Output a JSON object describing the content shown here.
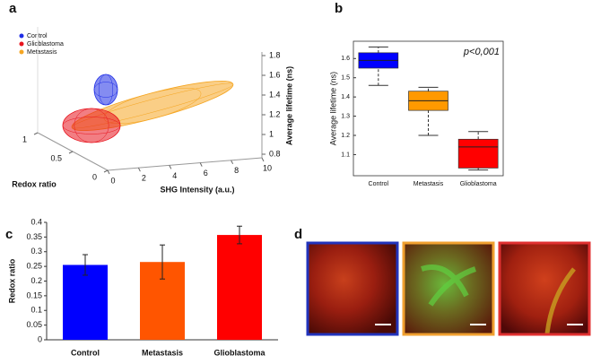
{
  "chart_data": [
    {
      "type": "scatter3d",
      "panel_label": "a",
      "series": [
        {
          "name": "Control",
          "color": "#1f2ee6"
        },
        {
          "name": "Glioblastoma",
          "color": "#e8141e"
        },
        {
          "name": "Metastasis",
          "color": "#f5a623"
        }
      ],
      "xlabel": "SHG Intensity (a.u.)",
      "ylabel": "Redox ratio",
      "zlabel": "Average lifetime (ns)",
      "xlim": [
        0,
        10
      ],
      "xticks": [
        0,
        2,
        4,
        6,
        8,
        10
      ],
      "ylim": [
        0,
        1
      ],
      "yticks": [
        0,
        0.5,
        1
      ],
      "zlim": [
        0.8,
        1.8
      ],
      "zticks": [
        0.8,
        1,
        1.2,
        1.4,
        1.6,
        1.8
      ]
    },
    {
      "type": "box",
      "panel_label": "b",
      "ylabel": "Average lifetime (ns)",
      "annotation": "p<0,001",
      "categories": [
        "Control",
        "Metastasis",
        "Glioblastoma"
      ],
      "colors": [
        "#0000ff",
        "#ff9900",
        "#ff0000"
      ],
      "min": [
        1.46,
        1.2,
        1.02
      ],
      "q1": [
        1.55,
        1.33,
        1.03
      ],
      "median": [
        1.59,
        1.38,
        1.14
      ],
      "q3": [
        1.63,
        1.43,
        1.18
      ],
      "max": [
        1.66,
        1.45,
        1.22
      ],
      "ylim": [
        0.99,
        1.69
      ],
      "yticks": [
        1.1,
        1.2,
        1.3,
        1.4,
        1.5,
        1.6
      ]
    },
    {
      "type": "bar",
      "panel_label": "c",
      "ylabel": "Redox ratio",
      "categories": [
        "Control",
        "Metastasis",
        "Glioblastoma"
      ],
      "colors": [
        "#0000ff",
        "#ff5500",
        "#ff0000"
      ],
      "values": [
        0.255,
        0.265,
        0.357
      ],
      "errors": [
        0.035,
        0.058,
        0.03
      ],
      "ylim": [
        0,
        0.4
      ],
      "yticks": [
        0,
        0.05,
        0.1,
        0.15,
        0.2,
        0.25,
        0.3,
        0.35,
        0.4
      ]
    }
  ],
  "images": {
    "panel_label": "d",
    "borders": [
      "#2233bb",
      "#f0a030",
      "#e03030"
    ]
  }
}
